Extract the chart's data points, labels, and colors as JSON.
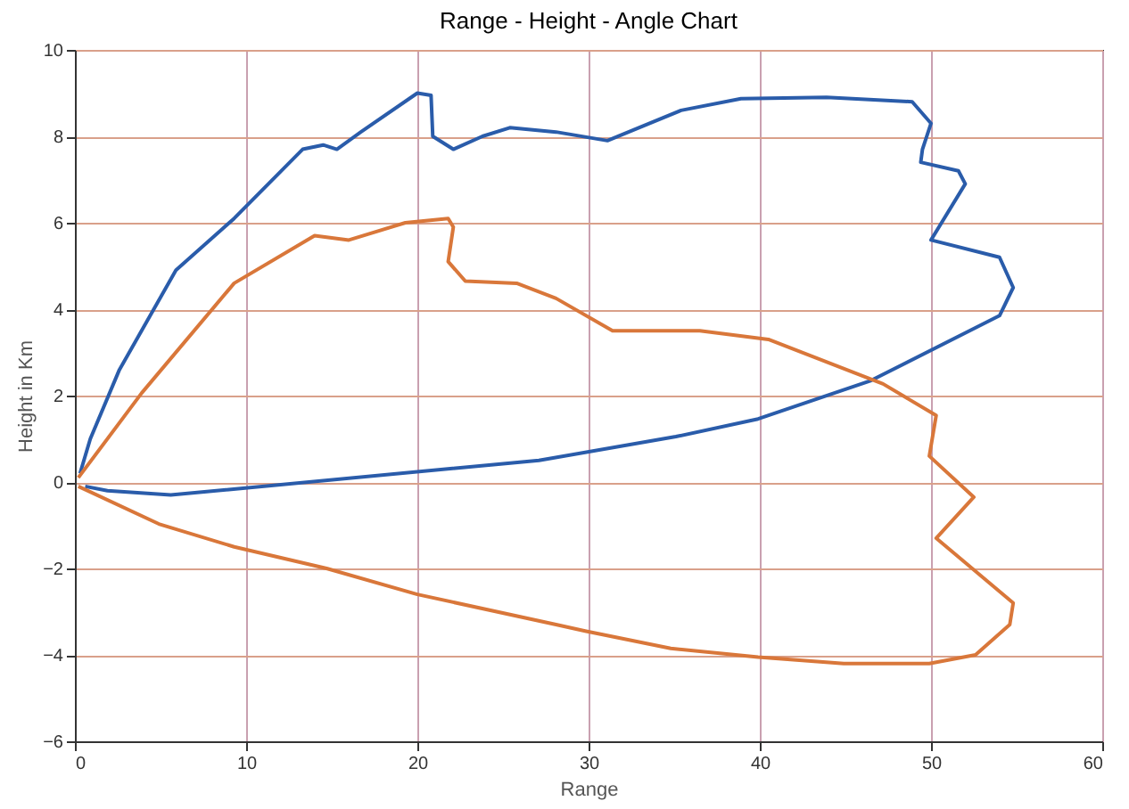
{
  "chart_data": {
    "type": "line",
    "title": "Range - Height - Angle Chart",
    "xlabel": "Range",
    "ylabel": "Height in Km",
    "xlim": [
      0,
      60
    ],
    "xticks": [
      0,
      10,
      20,
      30,
      40,
      50,
      60
    ],
    "ylim": [
      -6,
      10
    ],
    "yticks": [
      -6,
      -4,
      -2,
      0,
      2,
      4,
      6,
      8,
      10
    ],
    "grid": true,
    "line_style": "solid",
    "marker": "none",
    "series": [
      {
        "color": "#2a5caa",
        "x": [
          0.6,
          1.9,
          5.6,
          27.1,
          35.1,
          39.9,
          46.5,
          54,
          54.8,
          54,
          50,
          52,
          51.6,
          49.4,
          49.5,
          50,
          48.9,
          43.9,
          38.9,
          35.4,
          31.1,
          28.1,
          25.4,
          23.8,
          22.1,
          20.9,
          20.8,
          20,
          16.7,
          15.3,
          14.5,
          13.3,
          9.3,
          5.9,
          2.6,
          0.9,
          0.3
        ],
        "values": [
          -0.1,
          -0.2,
          -0.3,
          0.5,
          1.05,
          1.46,
          2.35,
          3.85,
          4.5,
          5.2,
          5.6,
          6.9,
          7.2,
          7.4,
          7.7,
          8.3,
          8.8,
          8.9,
          8.87,
          8.6,
          7.9,
          8.1,
          8.2,
          8.0,
          7.7,
          8.0,
          8.95,
          9.0,
          8.1,
          7.7,
          7.8,
          7.7,
          6.1,
          4.9,
          2.6,
          1.0,
          0.2
        ]
      },
      {
        "color": "#d9773a",
        "x": [
          0.2,
          3.9,
          9.3,
          14,
          16,
          19.3,
          21.8,
          22.1,
          21.8,
          22.8,
          25.8,
          28.1,
          31.4,
          36.5,
          40.5,
          47.2,
          50.3,
          49.9,
          52.5,
          50.3,
          54.8,
          54.6,
          52.6,
          49.9,
          44.9,
          39.9,
          34.8,
          29.8,
          28.1,
          20,
          14.7,
          9.3,
          4.9,
          0.2
        ],
        "values": [
          0.1,
          2.06,
          4.6,
          5.7,
          5.6,
          6.0,
          6.1,
          5.9,
          5.1,
          4.65,
          4.6,
          4.25,
          3.5,
          3.5,
          3.3,
          2.27,
          1.54,
          0.6,
          -0.35,
          -1.3,
          -2.8,
          -3.3,
          -4.0,
          -4.2,
          -4.2,
          -4.05,
          -3.85,
          -3.45,
          -3.3,
          -2.6,
          -2.0,
          -1.5,
          -0.97,
          -0.1
        ]
      }
    ]
  }
}
